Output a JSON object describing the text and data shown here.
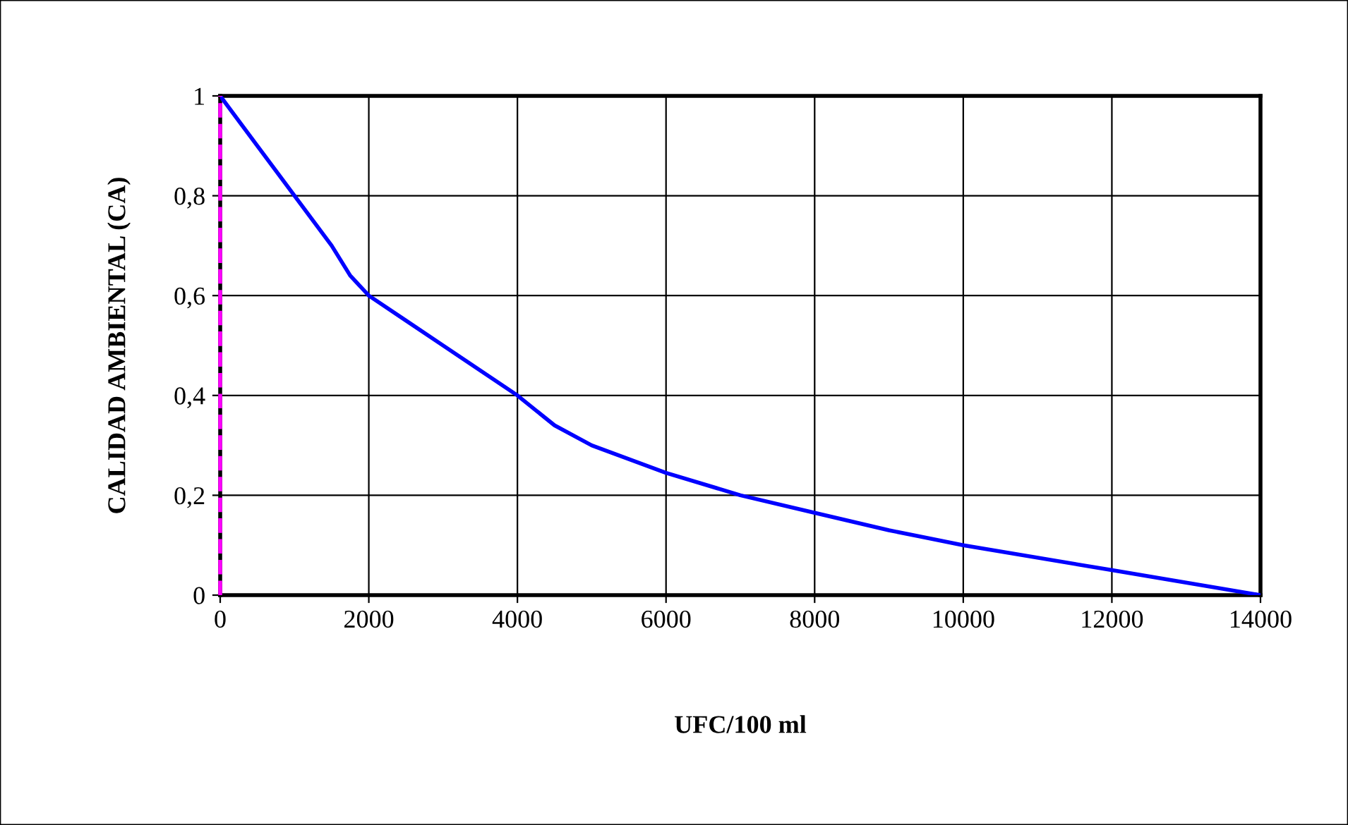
{
  "chart_data": {
    "type": "line",
    "xlabel": "UFC/100 ml",
    "ylabel": "CALIDAD AMBIENTAL (CA)",
    "x": [
      0,
      500,
      1000,
      1500,
      1750,
      2000,
      2500,
      3000,
      4000,
      4500,
      5000,
      6000,
      7000,
      8000,
      9000,
      10000,
      12000,
      14000
    ],
    "series": [
      {
        "color": "#0000ff",
        "values": [
          1,
          0.9,
          0.8,
          0.7,
          0.64,
          0.6,
          0.55,
          0.5,
          0.4,
          0.34,
          0.3,
          0.245,
          0.2,
          0.165,
          0.13,
          0.1,
          0.05,
          0
        ]
      }
    ],
    "xlim": [
      0,
      14000
    ],
    "xticks": [
      0,
      2000,
      4000,
      6000,
      8000,
      10000,
      12000,
      14000
    ],
    "ylim": [
      0,
      1
    ],
    "yticks": [
      0,
      {
        "value": 0.2,
        "label": "0,2"
      },
      {
        "value": 0.4,
        "label": "0,4"
      },
      {
        "value": 0.6,
        "label": "0,6"
      },
      {
        "value": 0.8,
        "label": "0,8"
      },
      1
    ],
    "grid": true,
    "marker": "none",
    "line_style": "solid",
    "ref_lines": [
      {
        "axis": "x",
        "value": 0,
        "color": "#ff00ff",
        "line_style": "dashed"
      }
    ]
  }
}
